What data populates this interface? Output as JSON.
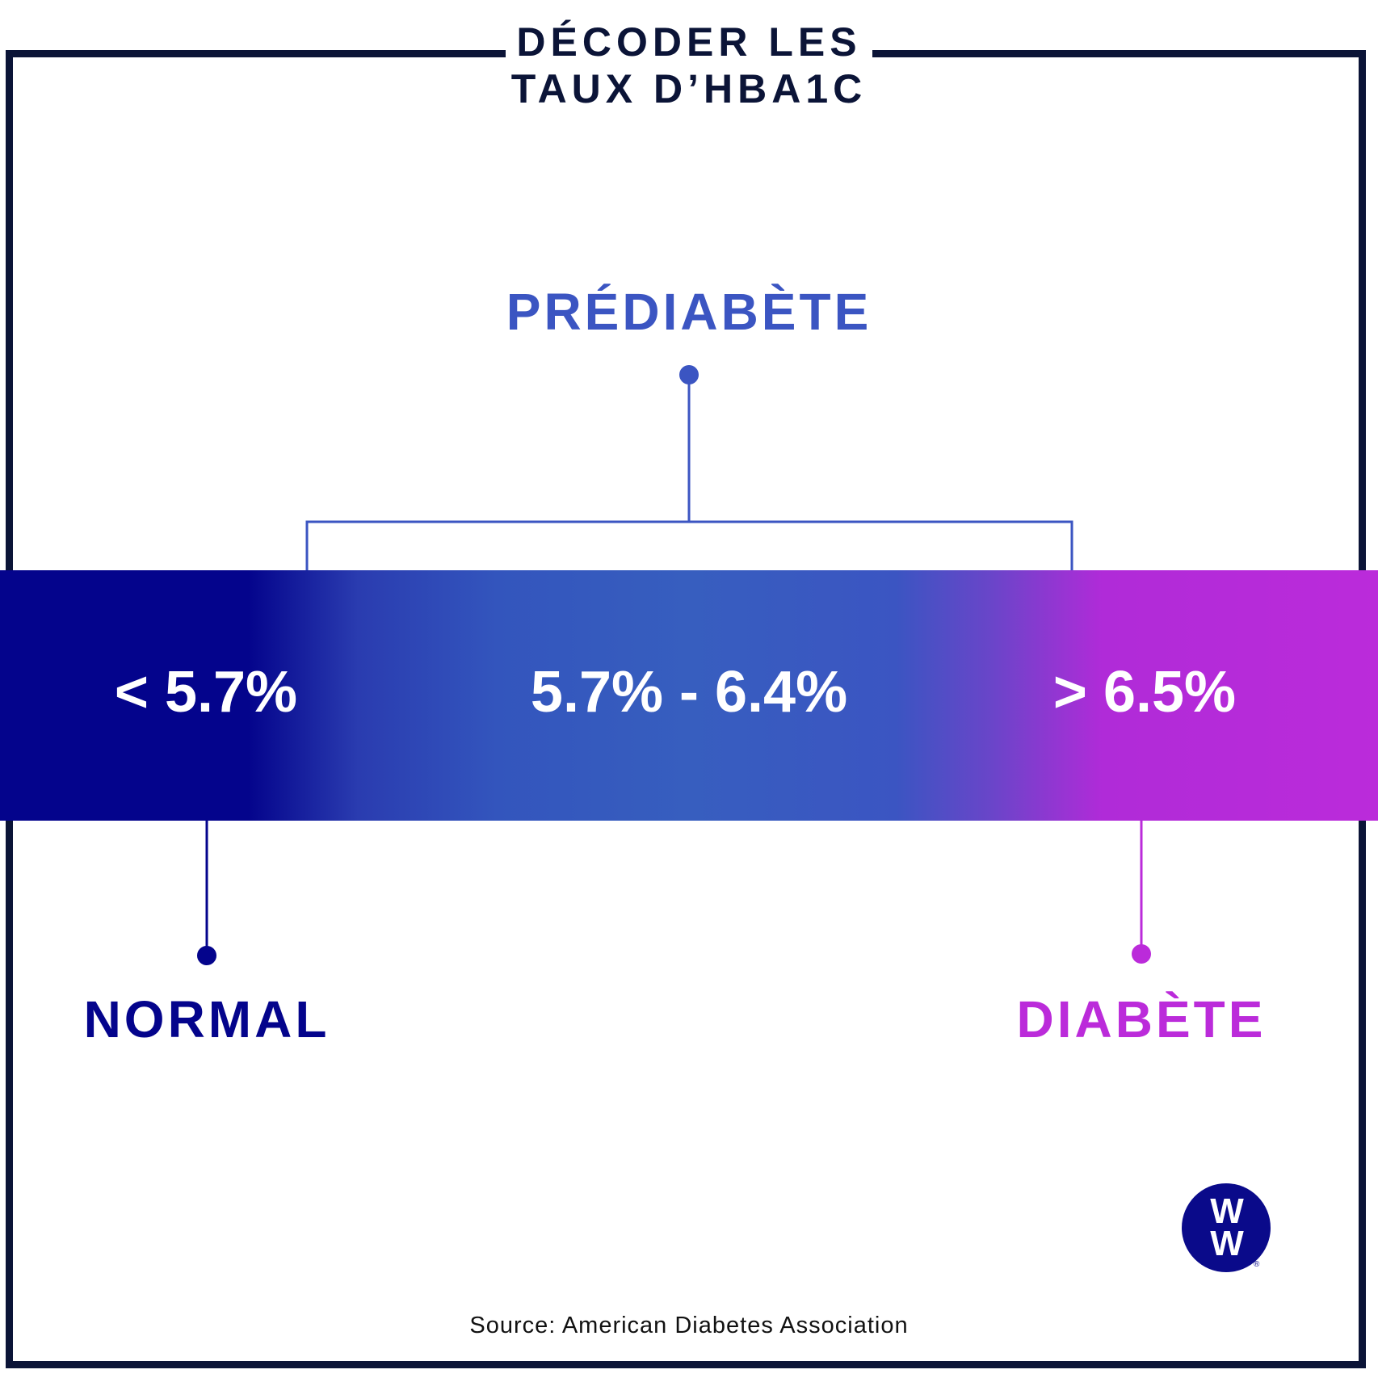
{
  "title": {
    "line1": "DÉCODER LES",
    "line2": "TAUX D’HBA1C"
  },
  "ranges": [
    {
      "value": "< 5.7%",
      "label": "NORMAL",
      "color": "#04048c"
    },
    {
      "value": "5.7% - 6.4%",
      "label": "PRÉDIABÈTE",
      "color": "#3b55c2"
    },
    {
      "value": "> 6.5%",
      "label": "DIABÈTE",
      "color": "#bb2bda"
    }
  ],
  "logo": {
    "text_top": "W",
    "text_bottom": "W",
    "registered": "®",
    "icon": "ww-logo-icon"
  },
  "source": "Source: American Diabetes Association",
  "colors": {
    "frame": "#0b1437",
    "normal": "#04048c",
    "prediabetes": "#3b55c2",
    "diabetes": "#bb2bda"
  }
}
